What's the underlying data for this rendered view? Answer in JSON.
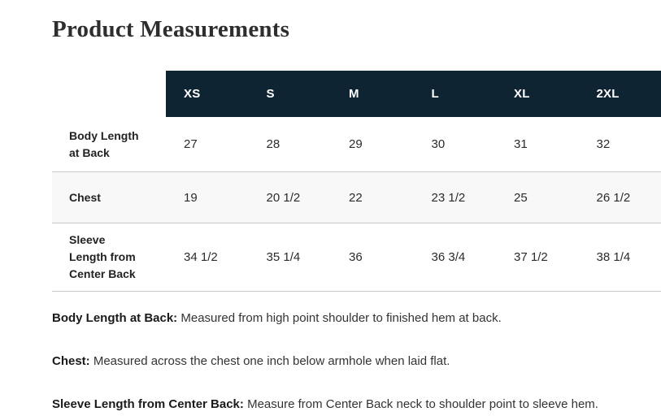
{
  "page": {
    "title": "Product Measurements"
  },
  "table": {
    "columns": [
      "XS",
      "S",
      "M",
      "L",
      "XL",
      "2XL"
    ],
    "rows": [
      {
        "label": "Body Length at Back",
        "values": [
          "27",
          "28",
          "29",
          "30",
          "31",
          "32"
        ]
      },
      {
        "label": "Chest",
        "values": [
          "19",
          "20 1/2",
          "22",
          "23 1/2",
          "25",
          "26 1/2"
        ]
      },
      {
        "label": "Sleeve Length from Center Back",
        "values": [
          "34 1/2",
          "35 1/4",
          "36",
          "36 3/4",
          "37 1/2",
          "38 1/4"
        ]
      }
    ]
  },
  "notes": [
    {
      "term": "Body Length at Back:",
      "description": " Measured from high point shoulder to finished hem at back."
    },
    {
      "term": "Chest:",
      "description": " Measured across the chest one inch below armhole when laid flat."
    },
    {
      "term": "Sleeve Length from Center Back:",
      "description": " Measure from Center Back neck to shoulder point to sleeve hem."
    }
  ],
  "colors": {
    "header_bg": "#0e2433",
    "header_text": "#ffffff",
    "stripe_bg": "#f8f8f8",
    "border": "#c9c9c9",
    "title_text": "#2e2e2e",
    "body_text": "#2b2b2b"
  }
}
